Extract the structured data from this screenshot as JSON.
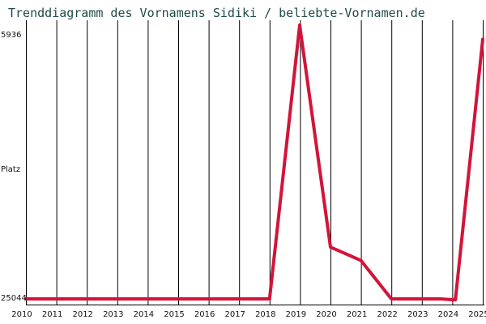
{
  "chart_data": {
    "type": "line",
    "title": "Trenddiagramm des Vornamens Sidiki / beliebte-Vornamen.de",
    "ylabel": "Platz",
    "y_axis_inverted": true,
    "y_tick_labels": [
      "5936",
      "25044"
    ],
    "ylim": [
      5936,
      25044
    ],
    "grid": "vertical",
    "categories": [
      "2010",
      "2011",
      "2012",
      "2013",
      "2014",
      "2015",
      "2016",
      "2017",
      "2018",
      "2019",
      "2020",
      "2021",
      "2022",
      "2023",
      "2024",
      "2025"
    ],
    "series": [
      {
        "color": "#d2143a",
        "x": [
          2010,
          2011,
          2012,
          2013,
          2014,
          2015,
          2016,
          2017,
          2018,
          2018.99,
          2019.04,
          2020,
          2021,
          2022,
          2023,
          2023.6,
          2024.1,
          2025
        ],
        "values": [
          25044,
          25044,
          25044,
          25044,
          25044,
          25044,
          25044,
          25044,
          25044,
          5700,
          6500,
          21390,
          22330,
          25044,
          25044,
          25044,
          25110,
          6700
        ]
      }
    ]
  }
}
